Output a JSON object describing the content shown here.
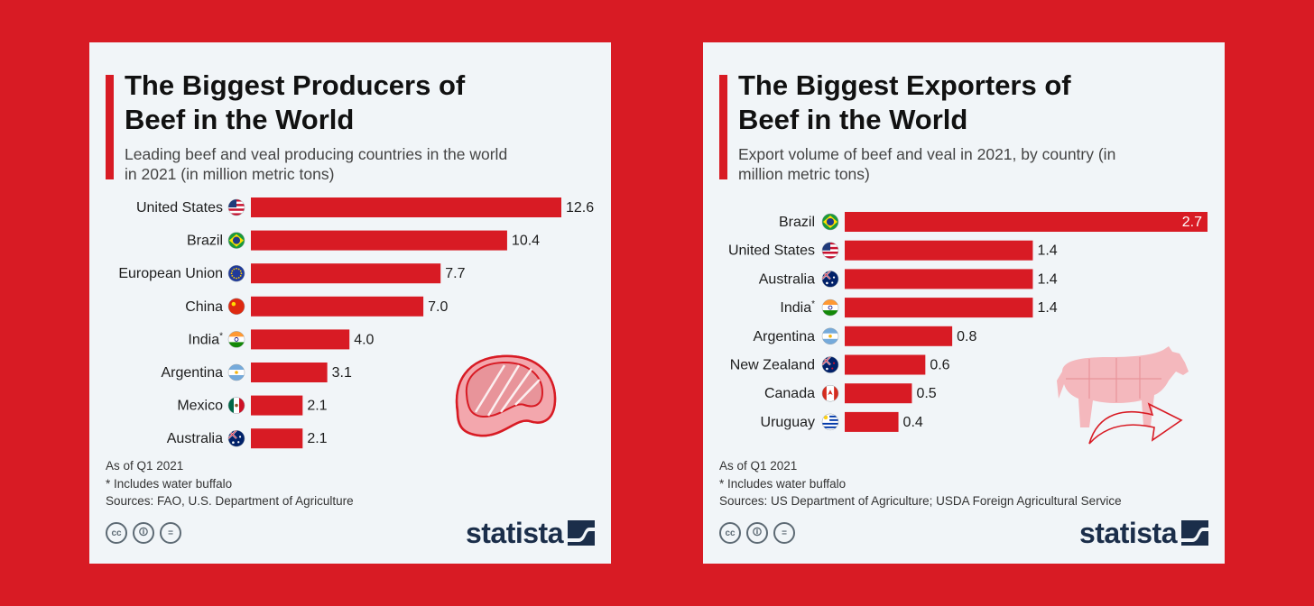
{
  "left": {
    "title": "The Biggest Producers of Beef in the World",
    "subtitle": "Leading beef and veal producing countries in the world in 2021 (in million metric tons)",
    "notes": [
      "As of Q1 2021",
      "* Includes water buffalo",
      "Sources: FAO, U.S. Department of Agriculture"
    ],
    "logo": "statista",
    "cc_icons": [
      "cc-icon",
      "by-icon",
      "nd-icon"
    ]
  },
  "right": {
    "title": "The Biggest Exporters of Beef in the World",
    "subtitle": "Export volume of beef and veal in 2021, by country (in million metric tons)",
    "notes": [
      "As of Q1 2021",
      "* Includes water buffalo",
      "Sources: US Department of Agriculture; USDA Foreign Agricultural Service"
    ],
    "logo": "statista",
    "cc_icons": [
      "cc-icon",
      "by-icon",
      "nd-icon"
    ]
  },
  "colors": {
    "background": "#d81b24",
    "bar": "#d81b24",
    "card": "#f1f5f8",
    "logo": "#1b2e4a"
  },
  "chart_data": [
    {
      "type": "bar",
      "orientation": "horizontal",
      "title": "The Biggest Producers of Beef in the World",
      "subtitle": "Leading beef and veal producing countries in the world in 2021 (in million metric tons)",
      "categories": [
        "United States",
        "Brazil",
        "European Union",
        "China",
        "India*",
        "Argentina",
        "Mexico",
        "Australia"
      ],
      "values": [
        12.6,
        10.4,
        7.7,
        7.0,
        4.0,
        3.1,
        2.1,
        2.1
      ],
      "value_labels": [
        "12.6",
        "10.4",
        "7.7",
        "7.0",
        "4.0",
        "3.1",
        "2.1",
        "2.1"
      ],
      "flags": [
        "us-flag-icon",
        "brazil-flag-icon",
        "eu-flag-icon",
        "china-flag-icon",
        "india-flag-icon",
        "argentina-flag-icon",
        "mexico-flag-icon",
        "australia-flag-icon"
      ],
      "xlim": [
        0,
        12.6
      ],
      "grid": false
    },
    {
      "type": "bar",
      "orientation": "horizontal",
      "title": "The Biggest Exporters of Beef in the World",
      "subtitle": "Export volume of beef and veal in 2021, by country (in million metric tons)",
      "categories": [
        "Brazil",
        "United States",
        "Australia",
        "India*",
        "Argentina",
        "New Zealand",
        "Canada",
        "Uruguay"
      ],
      "values": [
        2.7,
        1.4,
        1.4,
        1.4,
        0.8,
        0.6,
        0.5,
        0.4
      ],
      "value_labels": [
        "2.7",
        "1.4",
        "1.4",
        "1.4",
        "0.8",
        "0.6",
        "0.5",
        "0.4"
      ],
      "flags": [
        "brazil-flag-icon",
        "us-flag-icon",
        "australia-flag-icon",
        "india-flag-icon",
        "argentina-flag-icon",
        "new-zealand-flag-icon",
        "canada-flag-icon",
        "uruguay-flag-icon"
      ],
      "xlim": [
        0,
        2.7
      ],
      "grid": false
    }
  ]
}
